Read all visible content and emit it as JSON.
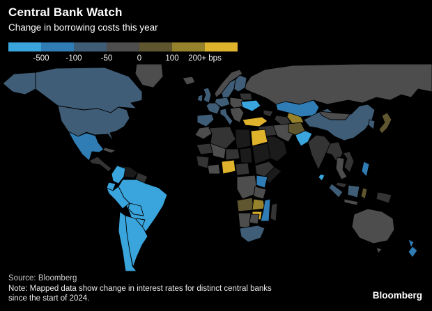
{
  "header": {
    "title": "Central Bank Watch",
    "subtitle": "Change in borrowing costs this year"
  },
  "legend": {
    "labels": [
      "-500",
      "-100",
      "-50",
      "0",
      "100",
      "200+ bps"
    ]
  },
  "footer": {
    "source": "Source: Bloomberg",
    "note_line1": "Note: Mapped data show change in interest rates for distinct central banks",
    "note_line2": "since the start of 2024.",
    "brand": "Bloomberg"
  },
  "chart_data": {
    "type": "choropleth",
    "region": "world",
    "unit": "bps",
    "title": "Central Bank Watch",
    "subtitle": "Change in borrowing costs this year",
    "legend_breaks": [
      -500,
      -100,
      -50,
      0,
      100,
      200
    ],
    "bins": [
      {
        "id": "cut_over_500",
        "range": "below -500",
        "color": "#3aa5dc"
      },
      {
        "id": "cut_100_to_500",
        "range": "-500 to -100",
        "color": "#2f7db4"
      },
      {
        "id": "cut_50_to_100",
        "range": "-100 to -50",
        "color": "#3f5d77"
      },
      {
        "id": "little_changed",
        "range": "-50 to 0",
        "color": "#4d4d4d"
      },
      {
        "id": "hike_0_to_100",
        "range": "0 to 100",
        "color": "#5f5630"
      },
      {
        "id": "hike_100_to_200",
        "range": "100 to 200",
        "color": "#97822c"
      },
      {
        "id": "hike_over_200",
        "range": "200+",
        "color": "#dfb32b"
      }
    ],
    "other_fills": {
      "dark": "#343434",
      "no_data": "#1b1b1b"
    },
    "countries": {
      "alaska": "cut_50_to_100",
      "canada": "cut_50_to_100",
      "greenland": "little_changed",
      "usa": "cut_50_to_100",
      "mexico": "cut_100_to_500",
      "central_america": "dark",
      "cuba": "little_changed",
      "colombia": "cut_over_500",
      "venezuela": "no_data",
      "guyanas": "dark",
      "ecuador": "cut_over_500",
      "peru": "cut_over_500",
      "brazil": "cut_over_500",
      "bolivia": "cut_over_500",
      "paraguay": "cut_over_500",
      "uruguay": "cut_over_500",
      "chile": "cut_over_500",
      "argentina": "cut_over_500",
      "iceland": "little_changed",
      "uk": "cut_50_to_100",
      "ireland": "cut_50_to_100",
      "norway": "little_changed",
      "sweden": "cut_50_to_100",
      "finland": "cut_50_to_100",
      "belarus_baltics": "dark",
      "germany_central": "cut_50_to_100",
      "eastern_europe": "little_changed",
      "france": "cut_50_to_100",
      "iberia": "cut_50_to_100",
      "italy": "cut_50_to_100",
      "balkans": "little_changed",
      "ukraine": "cut_over_500",
      "russia": "little_changed",
      "kazakhstan": "cut_100_to_500",
      "turkmenistan": "dark",
      "uzbekistan": "hike_100_to_200",
      "caucasus": "dark",
      "turkey": "hike_over_200",
      "iraq_syria": "dark",
      "iran": "little_changed",
      "afghanistan": "hike_0_to_100",
      "pakistan": "cut_over_500",
      "saudi_arabia": "no_data",
      "morocco": "little_changed",
      "algeria": "dark",
      "libya": "no_data",
      "egypt": "hike_over_200",
      "mauritania": "dark",
      "mali": "little_changed",
      "niger": "dark",
      "chad": "no_data",
      "sudan": "no_data",
      "senegal_guinea": "dark",
      "ghana_region": "little_changed",
      "nigeria": "hike_over_200",
      "cameroon_car": "dark",
      "ethiopia": "dark",
      "somalia": "no_data",
      "kenya": "cut_100_to_500",
      "drc": "little_changed",
      "tanzania": "little_changed",
      "angola": "hike_0_to_100",
      "zambia": "hike_100_to_200",
      "mozambique": "cut_100_to_500",
      "zimbabwe": "hike_over_200",
      "namibia": "little_changed",
      "botswana": "little_changed",
      "south_africa": "cut_50_to_100",
      "madagascar": "dark",
      "india": "dark",
      "sri_lanka": "cut_over_500",
      "bangladesh_myanmar": "dark",
      "china": "cut_50_to_100",
      "mongolia": "little_changed",
      "south_korea": "cut_50_to_100",
      "japan": "hike_0_to_100",
      "vietnam": "dark",
      "thailand": "little_changed",
      "malaysia": "dark",
      "sumatra": "cut_50_to_100",
      "java": "little_changed",
      "borneo": "cut_50_to_100",
      "sulawesi": "hike_0_to_100",
      "new_guinea": "dark",
      "philippines": "cut_100_to_500",
      "australia": "little_changed",
      "tasmania": "little_changed",
      "new_zealand": "cut_100_to_500"
    }
  }
}
